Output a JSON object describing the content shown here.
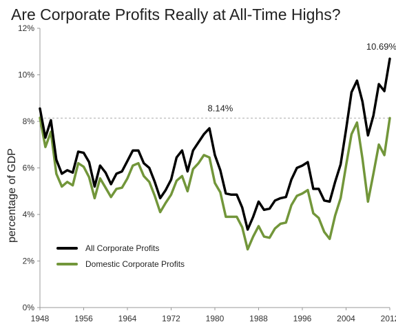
{
  "chart_data": {
    "type": "line",
    "title": "Are Corporate Profits Really at All-Time Highs?",
    "ylabel": "percentage of GDP",
    "xlabel": "",
    "xlim": [
      1948,
      2012
    ],
    "ylim": [
      0,
      12
    ],
    "x_ticks": [
      1948,
      1956,
      1964,
      1972,
      1980,
      1988,
      1996,
      2004,
      2012
    ],
    "x_tick_labels": [
      "1948",
      "1956",
      "1964",
      "1972",
      "1980",
      "1988",
      "1996",
      "2004",
      "2012"
    ],
    "y_ticks": [
      0,
      2,
      4,
      6,
      8,
      10,
      12
    ],
    "y_tick_labels": [
      "0%",
      "2%",
      "4%",
      "6%",
      "8%",
      "10%",
      "12%"
    ],
    "reference_line": {
      "y": 8.14,
      "style": "dashed"
    },
    "annotations": [
      {
        "x": 1981,
        "y": 8.14,
        "text": "8.14%"
      },
      {
        "x": 2012,
        "y": 10.69,
        "text": "10.69%"
      }
    ],
    "legend_position": "lower-left",
    "grid": false,
    "x": [
      1948,
      1949,
      1950,
      1951,
      1952,
      1953,
      1954,
      1955,
      1956,
      1957,
      1958,
      1959,
      1960,
      1961,
      1962,
      1963,
      1964,
      1965,
      1966,
      1967,
      1968,
      1969,
      1970,
      1971,
      1972,
      1973,
      1974,
      1975,
      1976,
      1977,
      1978,
      1979,
      1980,
      1981,
      1982,
      1983,
      1984,
      1985,
      1986,
      1987,
      1988,
      1989,
      1990,
      1991,
      1992,
      1993,
      1994,
      1995,
      1996,
      1997,
      1998,
      1999,
      2000,
      2001,
      2002,
      2003,
      2004,
      2005,
      2006,
      2007,
      2008,
      2009,
      2010,
      2011,
      2012
    ],
    "series": [
      {
        "name": "All Corporate Profits",
        "color": "#000000",
        "values": [
          8.55,
          7.3,
          8.05,
          6.35,
          5.75,
          5.9,
          5.8,
          6.7,
          6.65,
          6.25,
          5.2,
          6.1,
          5.8,
          5.3,
          5.75,
          5.85,
          6.3,
          6.75,
          6.75,
          6.2,
          6.0,
          5.4,
          4.7,
          5.05,
          5.5,
          6.45,
          6.75,
          5.85,
          6.75,
          7.1,
          7.45,
          7.7,
          6.55,
          5.9,
          4.9,
          4.85,
          4.85,
          4.3,
          3.35,
          3.9,
          4.55,
          4.2,
          4.25,
          4.6,
          4.7,
          4.75,
          5.5,
          6.0,
          6.1,
          6.25,
          5.1,
          5.1,
          4.6,
          4.55,
          5.4,
          6.15,
          7.65,
          9.25,
          9.75,
          8.85,
          7.4,
          8.25,
          9.6,
          9.3,
          10.69
        ]
      },
      {
        "name": "Domestic Corporate Profits",
        "color": "#72963a",
        "values": [
          8.15,
          6.9,
          7.55,
          5.75,
          5.2,
          5.4,
          5.25,
          6.2,
          6.05,
          5.6,
          4.7,
          5.55,
          5.15,
          4.75,
          5.1,
          5.15,
          5.55,
          6.1,
          6.2,
          5.65,
          5.4,
          4.8,
          4.1,
          4.5,
          4.85,
          5.45,
          5.65,
          5.0,
          5.95,
          6.2,
          6.55,
          6.45,
          5.35,
          4.95,
          3.9,
          3.9,
          3.9,
          3.45,
          2.5,
          3.05,
          3.5,
          3.05,
          3.0,
          3.4,
          3.6,
          3.65,
          4.4,
          4.8,
          4.9,
          5.05,
          4.05,
          3.85,
          3.25,
          2.95,
          3.95,
          4.7,
          6.1,
          7.45,
          7.95,
          6.4,
          4.55,
          5.75,
          7.0,
          6.55,
          8.14
        ]
      }
    ]
  }
}
